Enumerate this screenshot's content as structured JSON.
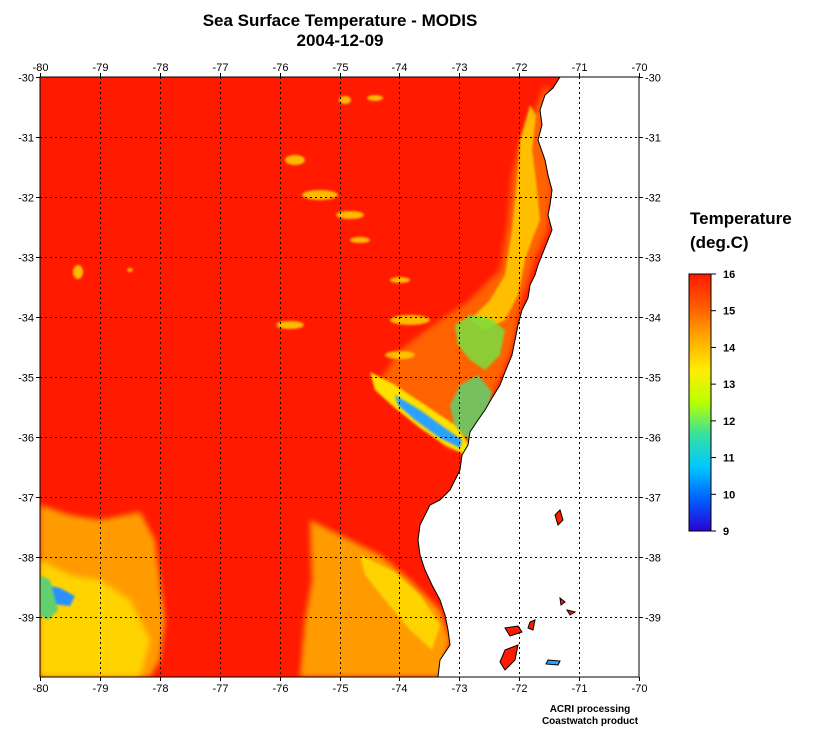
{
  "title": "Sea Surface Temperature - MODIS",
  "subtitle": "2004-12-09",
  "map": {
    "longitude_range": [
      -80,
      -70
    ],
    "latitude_range": [
      -40,
      -30
    ],
    "x_ticks": [
      "-80",
      "-79",
      "-78",
      "-77",
      "-76",
      "-75",
      "-74",
      "-73",
      "-72",
      "-71",
      "-70"
    ],
    "y_ticks": [
      "-30",
      "-31",
      "-32",
      "-33",
      "-34",
      "-35",
      "-36",
      "-37",
      "-38",
      "-39"
    ],
    "grid": "dotted"
  },
  "colorbar": {
    "title_line1": "Temperature",
    "title_line2": "(deg.C)",
    "labels": [
      "16",
      "15",
      "14",
      "13",
      "12",
      "11",
      "10",
      "9"
    ],
    "min": 9,
    "max": 16,
    "colors": [
      "#2b00d4",
      "#0060ff",
      "#00c8ff",
      "#36e0a0",
      "#b8ff00",
      "#ffee00",
      "#ffaa00",
      "#ff5a00",
      "#ff1a00"
    ]
  },
  "credits": {
    "line1": "ACRI processing",
    "line2": "Coastwatch product"
  },
  "colors": {
    "ocean_warm": "#ff1a00",
    "land": "#ffffff",
    "coastline": "#000000"
  }
}
